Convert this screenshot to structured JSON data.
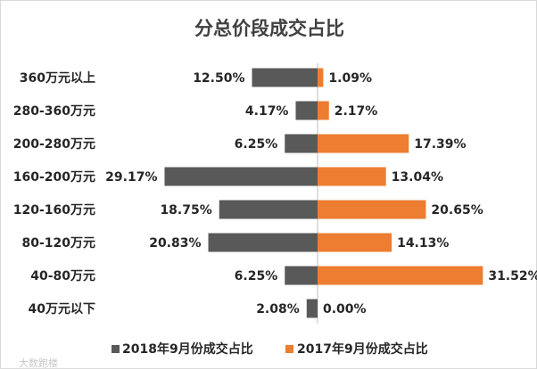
{
  "chart_data": {
    "type": "bar",
    "orientation": "horizontal-diverging",
    "title": "分总价段成交占比",
    "categories": [
      "360万元以上",
      "280-360万元",
      "200-280万元",
      "160-200万元",
      "120-160万元",
      "80-120万元",
      "40-80万元",
      "40万元以下"
    ],
    "series": [
      {
        "name": "2018年9月份成交占比",
        "color": "#595959",
        "direction": "left",
        "values": [
          12.5,
          4.17,
          6.25,
          29.17,
          18.75,
          20.83,
          6.25,
          2.08
        ],
        "labels": [
          "12.50%",
          "4.17%",
          "6.25%",
          "29.17%",
          "18.75%",
          "20.83%",
          "6.25%",
          "2.08%"
        ]
      },
      {
        "name": "2017年9月份成交占比",
        "color": "#ED7D31",
        "direction": "right",
        "values": [
          1.09,
          2.17,
          17.39,
          13.04,
          20.65,
          14.13,
          31.52,
          0.0
        ],
        "labels": [
          "1.09%",
          "2.17%",
          "17.39%",
          "13.04%",
          "20.65%",
          "14.13%",
          "31.52%",
          "0.00%"
        ]
      }
    ],
    "legend_position": "bottom",
    "grid": false
  },
  "watermark": "大数跑楼"
}
